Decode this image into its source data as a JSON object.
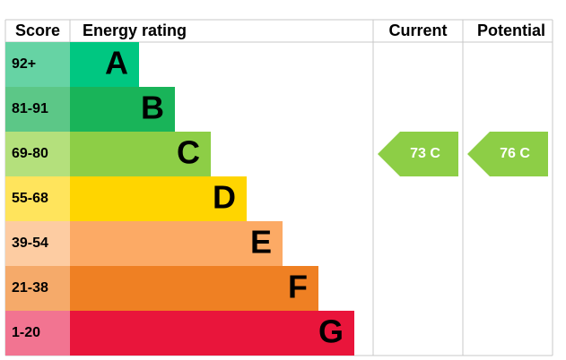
{
  "header": {
    "score": "Score",
    "rating": "Energy rating",
    "current": "Current",
    "potential": "Potential"
  },
  "rows": [
    {
      "score": "92+",
      "letter": "A"
    },
    {
      "score": "81-91",
      "letter": "B"
    },
    {
      "score": "69-80",
      "letter": "C"
    },
    {
      "score": "55-68",
      "letter": "D"
    },
    {
      "score": "39-54",
      "letter": "E"
    },
    {
      "score": "21-38",
      "letter": "F"
    },
    {
      "score": "1-20",
      "letter": "G"
    }
  ],
  "current": "73 C",
  "potential": "76 C"
}
